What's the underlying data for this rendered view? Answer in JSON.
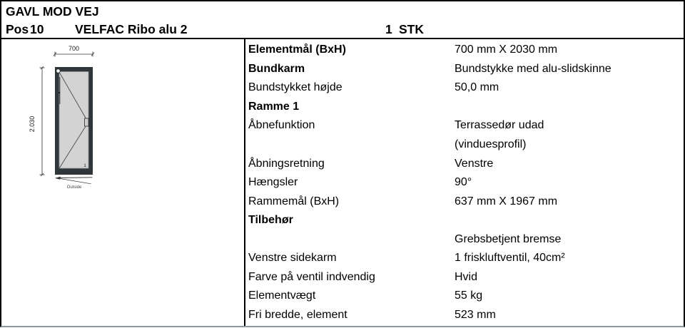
{
  "header": {
    "title": "GAVL MOD VEJ",
    "pos_label": "Pos",
    "pos_number": "10",
    "product": "VELFAC Ribo alu 2",
    "quantity_number": "1",
    "quantity_unit": "STK"
  },
  "drawing": {
    "width_dim": "700",
    "height_dim": "2.030",
    "outside_label": "Outside",
    "frame_number": "1",
    "colors": {
      "frame": "#30373b",
      "glass": "#d3d3d3",
      "line": "#444444",
      "dim": "#222222"
    }
  },
  "table": {
    "rows": [
      {
        "label": "Elementmål (BxH)",
        "value": "700 mm X 2030 mm",
        "bold": true
      },
      {
        "label": "Bundkarm",
        "value": "Bundstykke med alu-slidskinne",
        "bold": true
      },
      {
        "label": "Bundstykket højde",
        "value": "50,0 mm",
        "bold": false
      },
      {
        "label": "Ramme 1",
        "value": "",
        "bold": true
      },
      {
        "label": "Åbnefunktion",
        "value": "Terrassedør udad",
        "bold": false
      },
      {
        "label": "",
        "value": "(vinduesprofil)",
        "bold": false
      },
      {
        "label": "Åbningsretning",
        "value": "Venstre",
        "bold": false
      },
      {
        "label": "Hængsler",
        "value": "90°",
        "bold": false
      },
      {
        "label": "Rammemål (BxH)",
        "value": "637 mm X 1967 mm",
        "bold": false
      },
      {
        "label": "Tilbehør",
        "value": "",
        "bold": true
      },
      {
        "label": "",
        "value": "Grebsbetjent bremse",
        "bold": false
      },
      {
        "label": "Venstre sidekarm",
        "value": "1 friskluftventil, 40cm²",
        "bold": false
      },
      {
        "label": "Farve på ventil indvendig",
        "value": "Hvid",
        "bold": false
      },
      {
        "label": "Elementvægt",
        "value": "55 kg",
        "bold": false
      },
      {
        "label": "Fri bredde, element",
        "value": "523 mm",
        "bold": false
      }
    ]
  }
}
